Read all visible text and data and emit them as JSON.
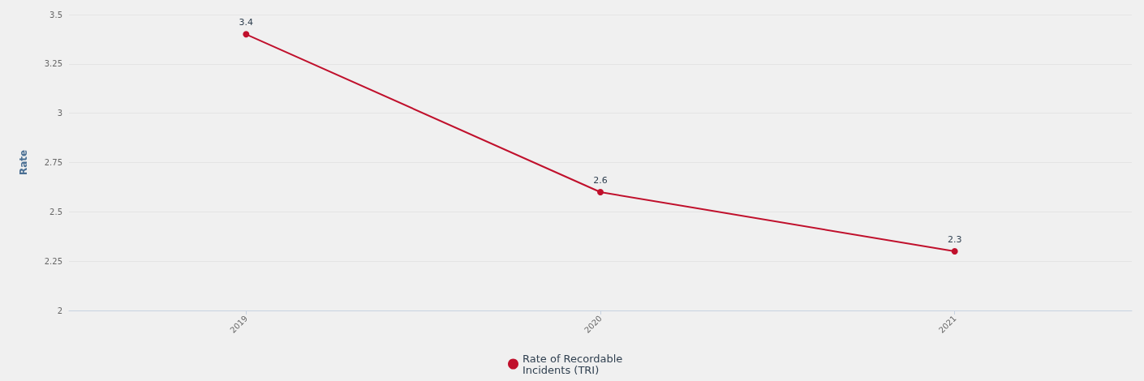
{
  "chart_data": {
    "type": "line",
    "ylabel": "Rate",
    "categories": [
      "2019",
      "2020",
      "2021"
    ],
    "series": [
      {
        "name": "Rate of Recordable Incidents (TRI)",
        "color": "#c0102c",
        "values": [
          3.4,
          2.6,
          2.3
        ]
      }
    ],
    "ylim": [
      2,
      3.5
    ],
    "yticks": [
      2,
      2.25,
      2.5,
      2.75,
      3,
      3.25,
      3.5
    ],
    "grid": "y",
    "legend": "bottom",
    "data_labels": true,
    "marker": "circle",
    "line_style": "solid"
  }
}
